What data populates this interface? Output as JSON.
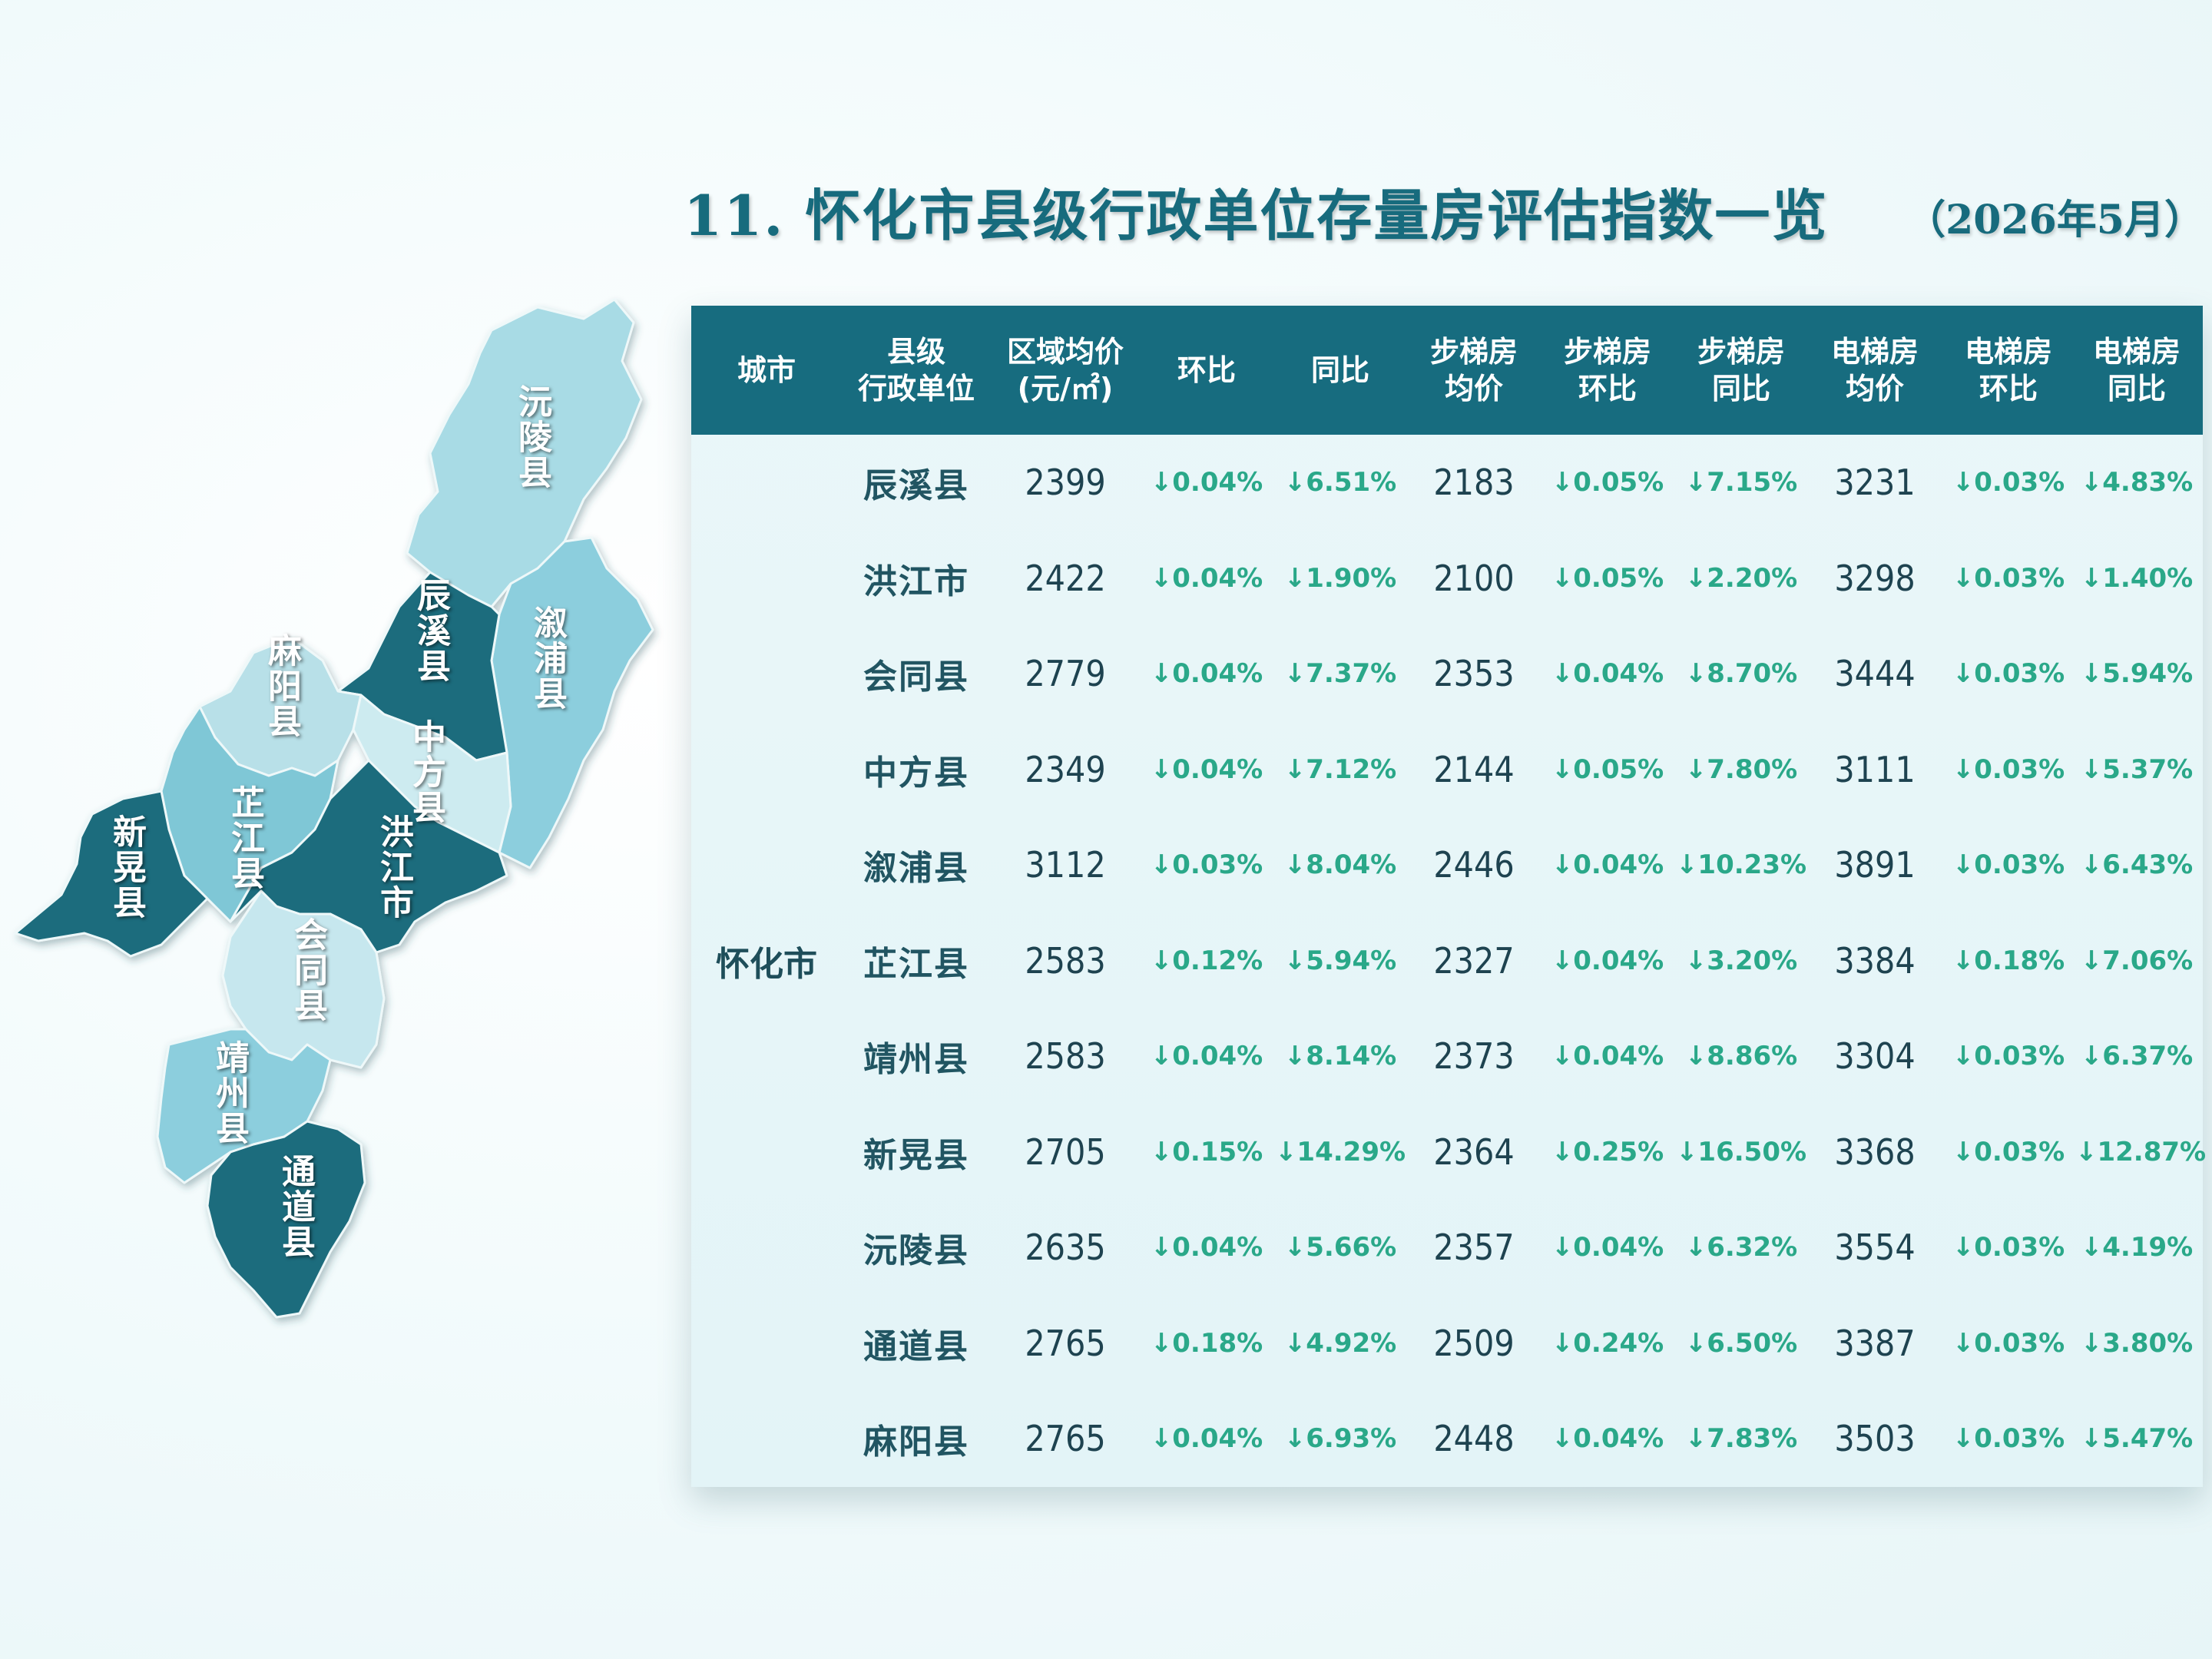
{
  "title": "11. 怀化市县级行政单位存量房评估指数一览",
  "date": "（2026年5月）",
  "colors": {
    "header_bg": "#176c7f",
    "pct": "#2aa889",
    "title": "#176b7d"
  },
  "map": {
    "labels": {
      "yuanling": "沅陵县",
      "chenxi": "辰溪县",
      "xupu": "溆浦县",
      "mayang": "麻阳县",
      "zhongfang": "中方县",
      "xinhuang": "新晃县",
      "zhijiang": "芷江县",
      "hongjiang": "洪江市",
      "huitong": "会同县",
      "jingzhou": "靖州县",
      "tongdao": "通道县"
    }
  },
  "table": {
    "headers": [
      "城市",
      "县级\n行政单位",
      "区域均价\n(元/㎡)",
      "环比",
      "同比",
      "步梯房\n均价",
      "步梯房\n环比",
      "步梯房\n同比",
      "电梯房\n均价",
      "电梯房\n环比",
      "电梯房\n同比"
    ],
    "city": "怀化市",
    "rows": [
      [
        "辰溪县",
        "2399",
        "↓0.04%",
        "↓6.51%",
        "2183",
        "↓0.05%",
        "↓7.15%",
        "3231",
        "↓0.03%",
        "↓4.83%"
      ],
      [
        "洪江市",
        "2422",
        "↓0.04%",
        "↓1.90%",
        "2100",
        "↓0.05%",
        "↓2.20%",
        "3298",
        "↓0.03%",
        "↓1.40%"
      ],
      [
        "会同县",
        "2779",
        "↓0.04%",
        "↓7.37%",
        "2353",
        "↓0.04%",
        "↓8.70%",
        "3444",
        "↓0.03%",
        "↓5.94%"
      ],
      [
        "中方县",
        "2349",
        "↓0.04%",
        "↓7.12%",
        "2144",
        "↓0.05%",
        "↓7.80%",
        "3111",
        "↓0.03%",
        "↓5.37%"
      ],
      [
        "溆浦县",
        "3112",
        "↓0.03%",
        "↓8.04%",
        "2446",
        "↓0.04%",
        "↓10.23%",
        "3891",
        "↓0.03%",
        "↓6.43%"
      ],
      [
        "芷江县",
        "2583",
        "↓0.12%",
        "↓5.94%",
        "2327",
        "↓0.04%",
        "↓3.20%",
        "3384",
        "↓0.18%",
        "↓7.06%"
      ],
      [
        "靖州县",
        "2583",
        "↓0.04%",
        "↓8.14%",
        "2373",
        "↓0.04%",
        "↓8.86%",
        "3304",
        "↓0.03%",
        "↓6.37%"
      ],
      [
        "新晃县",
        "2705",
        "↓0.15%",
        "↓14.29%",
        "2364",
        "↓0.25%",
        "↓16.50%",
        "3368",
        "↓0.03%",
        "↓12.87%"
      ],
      [
        "沅陵县",
        "2635",
        "↓0.04%",
        "↓5.66%",
        "2357",
        "↓0.04%",
        "↓6.32%",
        "3554",
        "↓0.03%",
        "↓4.19%"
      ],
      [
        "通道县",
        "2765",
        "↓0.18%",
        "↓4.92%",
        "2509",
        "↓0.24%",
        "↓6.50%",
        "3387",
        "↓0.03%",
        "↓3.80%"
      ],
      [
        "麻阳县",
        "2765",
        "↓0.04%",
        "↓6.93%",
        "2448",
        "↓0.04%",
        "↓7.83%",
        "3503",
        "↓0.03%",
        "↓5.47%"
      ]
    ]
  }
}
